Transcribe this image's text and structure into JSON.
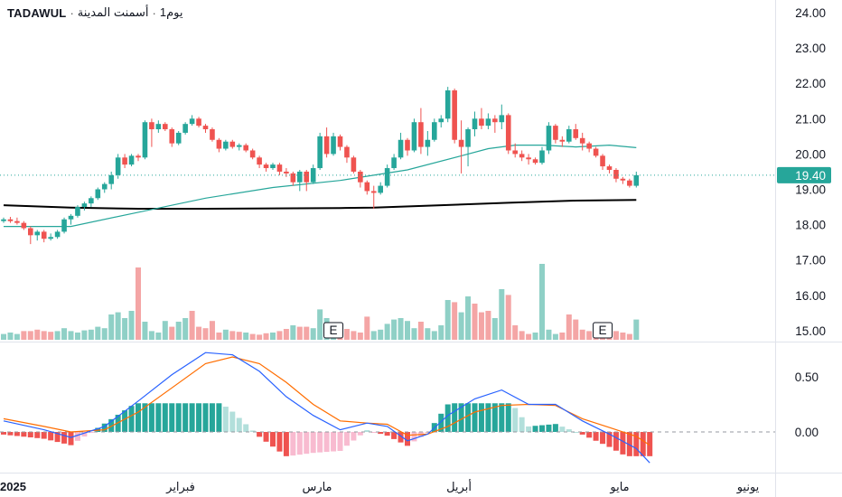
{
  "header": {
    "exchange": "TADAWUL",
    "name": "أسمنت المدينة",
    "interval": "1يوم",
    "separator": "·"
  },
  "colors": {
    "up": "#26a69a",
    "down": "#ef5350",
    "vol_up": "#8fd0c6",
    "vol_down": "#f4a5a5",
    "ma_short": "#26a69a",
    "ma_long": "#000000",
    "macd": "#2962ff",
    "signal": "#ff6d00",
    "last_price_bg": "#26a69a"
  },
  "price_axis": {
    "ticks": [
      "24.00",
      "23.00",
      "22.00",
      "21.00",
      "20.00",
      "19.00",
      "18.00",
      "17.00",
      "16.00",
      "15.00"
    ],
    "last_price": "19.40"
  },
  "macd_axis": {
    "ticks": [
      "0.50",
      "0.00"
    ]
  },
  "time_axis": {
    "labels": [
      "2025",
      "فبراير",
      "مارس",
      "أبريل",
      "مايو",
      "يونيو"
    ]
  },
  "earnings_markers": [
    "E",
    "E"
  ],
  "chart_data": {
    "type": "candlestick",
    "ylim": [
      15.0,
      24.0
    ],
    "candles": [
      [
        18.1,
        18.2,
        18.05,
        18.15
      ],
      [
        18.15,
        18.22,
        18.05,
        18.1
      ],
      [
        18.1,
        18.2,
        18.0,
        18.05
      ],
      [
        18.05,
        18.1,
        17.85,
        17.9
      ],
      [
        17.9,
        17.95,
        17.45,
        17.7
      ],
      [
        17.7,
        17.85,
        17.55,
        17.8
      ],
      [
        17.8,
        17.85,
        17.5,
        17.6
      ],
      [
        17.6,
        17.75,
        17.55,
        17.65
      ],
      [
        17.65,
        17.85,
        17.6,
        17.8
      ],
      [
        17.8,
        18.2,
        17.75,
        18.15
      ],
      [
        18.15,
        18.3,
        18.0,
        18.25
      ],
      [
        18.25,
        18.55,
        18.2,
        18.5
      ],
      [
        18.5,
        18.65,
        18.4,
        18.6
      ],
      [
        18.6,
        18.8,
        18.5,
        18.75
      ],
      [
        18.75,
        19.05,
        18.7,
        19.0
      ],
      [
        19.0,
        19.2,
        18.9,
        19.15
      ],
      [
        19.15,
        19.5,
        19.0,
        19.4
      ],
      [
        19.4,
        20.0,
        19.3,
        19.9
      ],
      [
        19.9,
        20.0,
        19.6,
        19.7
      ],
      [
        19.7,
        20.0,
        19.65,
        19.95
      ],
      [
        19.95,
        20.0,
        19.8,
        19.9
      ],
      [
        19.9,
        20.95,
        19.85,
        20.9
      ],
      [
        20.9,
        21.0,
        20.2,
        20.7
      ],
      [
        20.7,
        20.95,
        20.6,
        20.85
      ],
      [
        20.85,
        20.9,
        20.65,
        20.7
      ],
      [
        20.7,
        20.75,
        20.2,
        20.3
      ],
      [
        20.3,
        20.65,
        20.25,
        20.6
      ],
      [
        20.6,
        20.9,
        20.55,
        20.85
      ],
      [
        20.85,
        21.1,
        20.8,
        21.0
      ],
      [
        21.0,
        21.05,
        20.75,
        20.8
      ],
      [
        20.8,
        20.85,
        20.6,
        20.7
      ],
      [
        20.7,
        20.75,
        20.35,
        20.4
      ],
      [
        20.4,
        20.45,
        20.05,
        20.15
      ],
      [
        20.15,
        20.4,
        20.1,
        20.35
      ],
      [
        20.35,
        20.4,
        20.15,
        20.2
      ],
      [
        20.2,
        20.3,
        20.1,
        20.25
      ],
      [
        20.25,
        20.3,
        20.05,
        20.1
      ],
      [
        20.1,
        20.15,
        19.85,
        19.9
      ],
      [
        19.9,
        19.95,
        19.6,
        19.7
      ],
      [
        19.7,
        19.75,
        19.5,
        19.6
      ],
      [
        19.6,
        19.75,
        19.55,
        19.7
      ],
      [
        19.7,
        19.75,
        19.4,
        19.5
      ],
      [
        19.5,
        19.6,
        19.35,
        19.45
      ],
      [
        19.45,
        19.5,
        19.1,
        19.2
      ],
      [
        19.2,
        19.55,
        18.95,
        19.5
      ],
      [
        19.5,
        19.55,
        18.95,
        19.2
      ],
      [
        19.2,
        19.7,
        19.15,
        19.6
      ],
      [
        19.6,
        20.6,
        19.55,
        20.5
      ],
      [
        20.5,
        20.75,
        19.9,
        20.0
      ],
      [
        20.0,
        20.6,
        19.95,
        20.5
      ],
      [
        20.5,
        20.55,
        20.1,
        20.2
      ],
      [
        20.2,
        20.25,
        19.75,
        19.9
      ],
      [
        19.9,
        19.95,
        19.45,
        19.5
      ],
      [
        19.5,
        19.55,
        19.05,
        19.2
      ],
      [
        19.2,
        19.25,
        18.85,
        18.95
      ],
      [
        18.95,
        19.1,
        18.45,
        18.9
      ],
      [
        18.9,
        19.2,
        18.85,
        19.1
      ],
      [
        19.1,
        19.7,
        19.05,
        19.6
      ],
      [
        19.6,
        20.0,
        19.55,
        19.9
      ],
      [
        19.9,
        20.6,
        19.85,
        20.4
      ],
      [
        20.4,
        20.45,
        19.95,
        20.1
      ],
      [
        20.1,
        21.0,
        20.05,
        20.9
      ],
      [
        20.9,
        21.3,
        20.0,
        20.2
      ],
      [
        20.2,
        20.65,
        19.95,
        20.4
      ],
      [
        20.4,
        21.0,
        20.35,
        20.9
      ],
      [
        20.9,
        21.1,
        20.75,
        21.0
      ],
      [
        21.0,
        21.9,
        20.9,
        21.8
      ],
      [
        21.8,
        21.85,
        20.3,
        20.4
      ],
      [
        20.4,
        20.95,
        19.45,
        20.2
      ],
      [
        20.2,
        20.75,
        19.65,
        20.7
      ],
      [
        20.7,
        21.2,
        20.5,
        21.0
      ],
      [
        21.0,
        21.3,
        20.7,
        20.8
      ],
      [
        20.8,
        21.15,
        20.7,
        21.0
      ],
      [
        21.0,
        21.1,
        20.6,
        20.9
      ],
      [
        20.9,
        21.4,
        20.7,
        21.1
      ],
      [
        21.1,
        21.15,
        20.0,
        20.1
      ],
      [
        20.1,
        20.3,
        19.9,
        20.0
      ],
      [
        20.0,
        20.1,
        19.8,
        19.9
      ],
      [
        19.9,
        20.0,
        19.7,
        19.85
      ],
      [
        19.85,
        19.9,
        19.7,
        19.75
      ],
      [
        19.75,
        20.2,
        19.7,
        20.1
      ],
      [
        20.1,
        20.9,
        20.0,
        20.8
      ],
      [
        20.8,
        20.85,
        20.3,
        20.4
      ],
      [
        20.4,
        20.5,
        20.2,
        20.35
      ],
      [
        20.35,
        20.8,
        20.3,
        20.7
      ],
      [
        20.7,
        20.85,
        20.4,
        20.45
      ],
      [
        20.45,
        20.6,
        20.1,
        20.3
      ],
      [
        20.3,
        20.35,
        20.05,
        20.15
      ],
      [
        20.15,
        20.2,
        19.9,
        19.95
      ],
      [
        19.95,
        20.0,
        19.55,
        19.65
      ],
      [
        19.65,
        19.7,
        19.45,
        19.55
      ],
      [
        19.55,
        19.6,
        19.2,
        19.3
      ],
      [
        19.3,
        19.35,
        19.15,
        19.25
      ],
      [
        19.25,
        19.3,
        19.05,
        19.1
      ],
      [
        19.1,
        19.5,
        19.05,
        19.4
      ]
    ],
    "ma_short": [
      [
        0,
        17.95
      ],
      [
        10,
        17.95
      ],
      [
        20,
        18.35
      ],
      [
        30,
        18.75
      ],
      [
        40,
        19.05
      ],
      [
        50,
        19.25
      ],
      [
        60,
        19.55
      ],
      [
        68,
        19.95
      ],
      [
        72,
        20.15
      ],
      [
        76,
        20.25
      ],
      [
        80,
        20.25
      ],
      [
        85,
        20.2
      ],
      [
        90,
        20.25
      ],
      [
        94,
        20.18
      ]
    ],
    "ma_long": [
      [
        0,
        18.55
      ],
      [
        10,
        18.48
      ],
      [
        20,
        18.45
      ],
      [
        30,
        18.45
      ],
      [
        40,
        18.46
      ],
      [
        50,
        18.47
      ],
      [
        55,
        18.48
      ],
      [
        65,
        18.55
      ],
      [
        75,
        18.62
      ],
      [
        85,
        18.68
      ],
      [
        94,
        18.7
      ]
    ],
    "volume": [
      [
        0.08,
        1
      ],
      [
        0.1,
        1
      ],
      [
        0.08,
        1
      ],
      [
        0.12,
        0
      ],
      [
        0.12,
        0
      ],
      [
        0.14,
        0
      ],
      [
        0.12,
        0
      ],
      [
        0.11,
        0
      ],
      [
        0.12,
        1
      ],
      [
        0.16,
        1
      ],
      [
        0.12,
        1
      ],
      [
        0.1,
        1
      ],
      [
        0.13,
        1
      ],
      [
        0.14,
        1
      ],
      [
        0.18,
        1
      ],
      [
        0.16,
        1
      ],
      [
        0.35,
        1
      ],
      [
        0.38,
        1
      ],
      [
        0.3,
        1
      ],
      [
        0.4,
        1
      ],
      [
        1.0,
        0
      ],
      [
        0.25,
        1
      ],
      [
        0.12,
        1
      ],
      [
        0.1,
        1
      ],
      [
        0.26,
        1
      ],
      [
        0.18,
        0
      ],
      [
        0.25,
        1
      ],
      [
        0.3,
        1
      ],
      [
        0.4,
        0
      ],
      [
        0.18,
        0
      ],
      [
        0.16,
        0
      ],
      [
        0.26,
        0
      ],
      [
        0.1,
        0
      ],
      [
        0.14,
        1
      ],
      [
        0.12,
        0
      ],
      [
        0.11,
        0
      ],
      [
        0.1,
        1
      ],
      [
        0.08,
        0
      ],
      [
        0.07,
        0
      ],
      [
        0.09,
        0
      ],
      [
        0.1,
        1
      ],
      [
        0.12,
        0
      ],
      [
        0.15,
        0
      ],
      [
        0.2,
        1
      ],
      [
        0.18,
        0
      ],
      [
        0.18,
        0
      ],
      [
        0.16,
        1
      ],
      [
        0.42,
        1
      ],
      [
        0.3,
        1
      ],
      [
        0.18,
        1
      ],
      [
        0.2,
        0
      ],
      [
        0.15,
        0
      ],
      [
        0.12,
        0
      ],
      [
        0.1,
        0
      ],
      [
        0.32,
        0
      ],
      [
        0.12,
        1
      ],
      [
        0.14,
        1
      ],
      [
        0.22,
        1
      ],
      [
        0.28,
        1
      ],
      [
        0.3,
        1
      ],
      [
        0.26,
        1
      ],
      [
        0.16,
        1
      ],
      [
        0.25,
        0
      ],
      [
        0.16,
        1
      ],
      [
        0.12,
        1
      ],
      [
        0.2,
        1
      ],
      [
        0.55,
        1
      ],
      [
        0.52,
        0
      ],
      [
        0.38,
        1
      ],
      [
        0.6,
        1
      ],
      [
        0.5,
        0
      ],
      [
        0.38,
        0
      ],
      [
        0.4,
        0
      ],
      [
        0.3,
        1
      ],
      [
        0.7,
        1
      ],
      [
        0.62,
        0
      ],
      [
        0.2,
        0
      ],
      [
        0.12,
        0
      ],
      [
        0.08,
        0
      ],
      [
        0.1,
        1
      ],
      [
        1.05,
        1
      ],
      [
        0.14,
        1
      ],
      [
        0.08,
        1
      ],
      [
        0.1,
        0
      ],
      [
        0.35,
        0
      ],
      [
        0.28,
        0
      ],
      [
        0.14,
        0
      ],
      [
        0.12,
        0
      ],
      [
        0.1,
        0
      ],
      [
        0.11,
        0
      ],
      [
        0.1,
        0
      ],
      [
        0.12,
        0
      ],
      [
        0.1,
        0
      ],
      [
        0.08,
        0
      ],
      [
        0.28,
        1
      ]
    ],
    "macd": [
      [
        0,
        0.1
      ],
      [
        6,
        0.02
      ],
      [
        10,
        -0.05
      ],
      [
        15,
        0.05
      ],
      [
        20,
        0.28
      ],
      [
        25,
        0.52
      ],
      [
        30,
        0.72
      ],
      [
        34,
        0.7
      ],
      [
        38,
        0.55
      ],
      [
        42,
        0.32
      ],
      [
        46,
        0.15
      ],
      [
        50,
        0.02
      ],
      [
        54,
        0.08
      ],
      [
        57,
        0.05
      ],
      [
        60,
        -0.08
      ],
      [
        63,
        -0.02
      ],
      [
        66,
        0.15
      ],
      [
        70,
        0.3
      ],
      [
        74,
        0.38
      ],
      [
        78,
        0.25
      ],
      [
        82,
        0.25
      ],
      [
        86,
        0.1
      ],
      [
        90,
        -0.02
      ],
      [
        94,
        -0.15
      ],
      [
        96,
        -0.28
      ]
    ],
    "signal": [
      [
        0,
        0.12
      ],
      [
        6,
        0.05
      ],
      [
        10,
        0.0
      ],
      [
        15,
        0.02
      ],
      [
        20,
        0.18
      ],
      [
        25,
        0.4
      ],
      [
        30,
        0.62
      ],
      [
        34,
        0.68
      ],
      [
        38,
        0.62
      ],
      [
        42,
        0.45
      ],
      [
        46,
        0.25
      ],
      [
        50,
        0.1
      ],
      [
        54,
        0.08
      ],
      [
        57,
        0.07
      ],
      [
        60,
        -0.03
      ],
      [
        63,
        -0.02
      ],
      [
        66,
        0.05
      ],
      [
        70,
        0.18
      ],
      [
        74,
        0.24
      ],
      [
        78,
        0.25
      ],
      [
        82,
        0.24
      ],
      [
        86,
        0.12
      ],
      [
        90,
        0.04
      ],
      [
        94,
        -0.04
      ],
      [
        96,
        -0.12
      ]
    ],
    "macd_ylim": [
      -0.4,
      0.8
    ]
  }
}
